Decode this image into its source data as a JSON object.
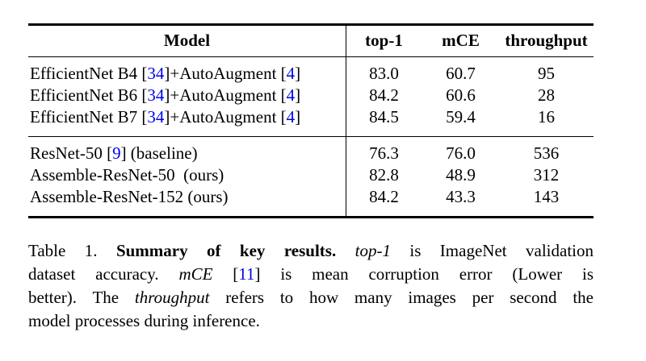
{
  "colors": {
    "background": "#ffffff",
    "text": "#000000",
    "citation": "#0000EE",
    "rule": "#000000"
  },
  "table": {
    "header": {
      "model": "Model",
      "top1": "top-1",
      "mce": "mCE",
      "throughput": "throughput"
    },
    "rows": [
      {
        "parts": [
          {
            "text": "EfficientNet B4 ["
          },
          {
            "text": "34",
            "cite": true
          },
          {
            "text": "]+AutoAugment ["
          },
          {
            "text": "4",
            "cite": true
          },
          {
            "text": "]"
          }
        ],
        "top1": "83.0",
        "mce": "60.7",
        "throughput": "95"
      },
      {
        "parts": [
          {
            "text": "EfficientNet B6 ["
          },
          {
            "text": "34",
            "cite": true
          },
          {
            "text": "]+AutoAugment ["
          },
          {
            "text": "4",
            "cite": true
          },
          {
            "text": "]"
          }
        ],
        "top1": "84.2",
        "mce": "60.6",
        "throughput": "28"
      },
      {
        "parts": [
          {
            "text": "EfficientNet B7 ["
          },
          {
            "text": "34",
            "cite": true
          },
          {
            "text": "]+AutoAugment ["
          },
          {
            "text": "4",
            "cite": true
          },
          {
            "text": "]"
          }
        ],
        "top1": "84.5",
        "mce": "59.4",
        "throughput": "16"
      },
      {
        "parts": [
          {
            "text": "ResNet-50 ["
          },
          {
            "text": "9",
            "cite": true
          },
          {
            "text": "] (baseline)"
          }
        ],
        "top1": "76.3",
        "mce": "76.0",
        "throughput": "536"
      },
      {
        "parts": [
          {
            "text": "Assemble-ResNet-50  (ours)"
          }
        ],
        "top1": "82.8",
        "mce": "48.9",
        "throughput": "312"
      },
      {
        "parts": [
          {
            "text": "Assemble-ResNet-152 (ours)"
          }
        ],
        "top1": "84.2",
        "mce": "43.3",
        "throughput": "143"
      }
    ]
  },
  "caption": {
    "lines": [
      {
        "parts": [
          {
            "text": "Table 1. "
          },
          {
            "text": "Summary of key results. ",
            "bold": true
          },
          {
            "text": "top-1",
            "italic": true
          },
          {
            "text": " is ImageNet validation"
          }
        ]
      },
      {
        "parts": [
          {
            "text": "dataset accuracy. "
          },
          {
            "text": "mCE",
            "italic": true
          },
          {
            "text": " ["
          },
          {
            "text": "11",
            "cite": true
          },
          {
            "text": "] is mean corruption error (Lower is"
          }
        ]
      },
      {
        "parts": [
          {
            "text": "better). The "
          },
          {
            "text": "throughput",
            "italic": true
          },
          {
            "text": " refers to how many images per second the"
          }
        ]
      },
      {
        "parts": [
          {
            "text": "model processes during inference."
          }
        ]
      }
    ]
  }
}
